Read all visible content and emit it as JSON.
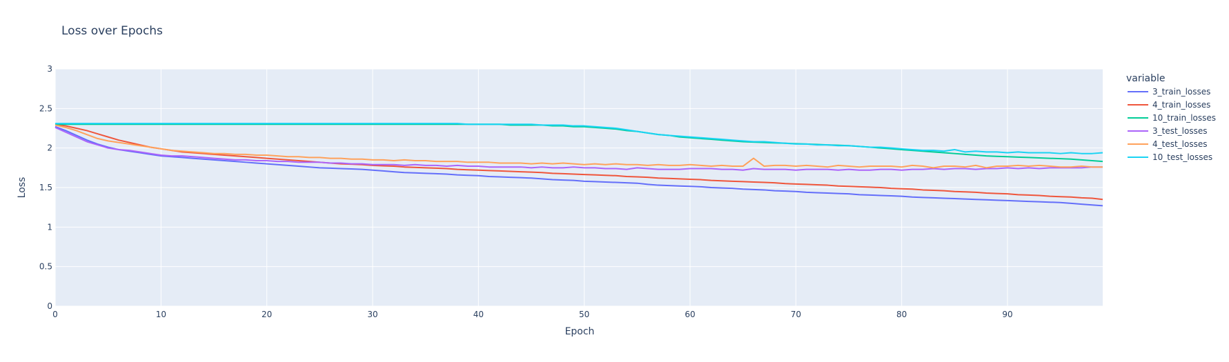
{
  "chart_data": {
    "type": "line",
    "title": "Loss over Epochs",
    "xlabel": "Epoch",
    "ylabel": "Loss",
    "xlim": [
      0,
      99
    ],
    "ylim": [
      0,
      3
    ],
    "x_ticks": [
      0,
      10,
      20,
      30,
      40,
      50,
      60,
      70,
      80,
      90
    ],
    "y_ticks": [
      0,
      0.5,
      1,
      1.5,
      2,
      2.5,
      3
    ],
    "grid": true,
    "legend_title": "variable",
    "legend_position": "right",
    "series": [
      {
        "name": "3_train_losses",
        "color": "#636efa",
        "values": [
          2.27,
          2.22,
          2.16,
          2.1,
          2.05,
          2.01,
          1.98,
          1.96,
          1.94,
          1.92,
          1.9,
          1.89,
          1.88,
          1.87,
          1.86,
          1.85,
          1.84,
          1.83,
          1.82,
          1.81,
          1.8,
          1.79,
          1.78,
          1.77,
          1.76,
          1.75,
          1.745,
          1.74,
          1.735,
          1.73,
          1.72,
          1.71,
          1.7,
          1.69,
          1.685,
          1.68,
          1.675,
          1.67,
          1.66,
          1.655,
          1.65,
          1.64,
          1.635,
          1.63,
          1.625,
          1.62,
          1.61,
          1.6,
          1.595,
          1.59,
          1.58,
          1.575,
          1.57,
          1.565,
          1.56,
          1.555,
          1.54,
          1.53,
          1.525,
          1.52,
          1.515,
          1.51,
          1.5,
          1.495,
          1.49,
          1.48,
          1.475,
          1.47,
          1.46,
          1.455,
          1.45,
          1.44,
          1.435,
          1.43,
          1.425,
          1.42,
          1.41,
          1.405,
          1.4,
          1.395,
          1.39,
          1.38,
          1.375,
          1.37,
          1.365,
          1.36,
          1.355,
          1.35,
          1.345,
          1.34,
          1.335,
          1.33,
          1.325,
          1.32,
          1.315,
          1.31,
          1.3,
          1.29,
          1.28,
          1.27
        ]
      },
      {
        "name": "4_train_losses",
        "color": "#ef553b",
        "values": [
          2.3,
          2.28,
          2.25,
          2.22,
          2.18,
          2.14,
          2.1,
          2.07,
          2.04,
          2.01,
          1.99,
          1.97,
          1.95,
          1.94,
          1.93,
          1.92,
          1.91,
          1.9,
          1.89,
          1.88,
          1.87,
          1.86,
          1.85,
          1.84,
          1.83,
          1.82,
          1.81,
          1.8,
          1.795,
          1.79,
          1.78,
          1.775,
          1.77,
          1.76,
          1.755,
          1.75,
          1.745,
          1.74,
          1.73,
          1.725,
          1.72,
          1.715,
          1.71,
          1.705,
          1.7,
          1.695,
          1.69,
          1.68,
          1.675,
          1.67,
          1.665,
          1.66,
          1.655,
          1.65,
          1.64,
          1.635,
          1.63,
          1.62,
          1.615,
          1.61,
          1.605,
          1.6,
          1.59,
          1.585,
          1.58,
          1.575,
          1.57,
          1.565,
          1.56,
          1.55,
          1.545,
          1.54,
          1.535,
          1.53,
          1.52,
          1.515,
          1.51,
          1.505,
          1.5,
          1.49,
          1.485,
          1.48,
          1.47,
          1.465,
          1.46,
          1.45,
          1.445,
          1.44,
          1.43,
          1.425,
          1.42,
          1.41,
          1.405,
          1.4,
          1.39,
          1.385,
          1.38,
          1.37,
          1.365,
          1.35
        ]
      },
      {
        "name": "10_train_losses",
        "color": "#00cc96",
        "values": [
          2.3,
          2.3,
          2.3,
          2.3,
          2.3,
          2.3,
          2.3,
          2.3,
          2.3,
          2.3,
          2.3,
          2.3,
          2.3,
          2.3,
          2.3,
          2.3,
          2.3,
          2.3,
          2.3,
          2.3,
          2.3,
          2.3,
          2.3,
          2.3,
          2.3,
          2.3,
          2.3,
          2.3,
          2.3,
          2.3,
          2.3,
          2.3,
          2.3,
          2.3,
          2.3,
          2.3,
          2.3,
          2.3,
          2.3,
          2.3,
          2.3,
          2.3,
          2.3,
          2.29,
          2.29,
          2.29,
          2.29,
          2.28,
          2.28,
          2.27,
          2.27,
          2.26,
          2.25,
          2.24,
          2.22,
          2.21,
          2.19,
          2.17,
          2.16,
          2.14,
          2.13,
          2.12,
          2.11,
          2.1,
          2.09,
          2.08,
          2.075,
          2.07,
          2.065,
          2.06,
          2.055,
          2.05,
          2.045,
          2.04,
          2.035,
          2.03,
          2.02,
          2.01,
          2.0,
          1.99,
          1.98,
          1.97,
          1.96,
          1.95,
          1.94,
          1.93,
          1.92,
          1.91,
          1.9,
          1.895,
          1.89,
          1.885,
          1.88,
          1.875,
          1.87,
          1.865,
          1.86,
          1.85,
          1.84,
          1.83
        ]
      },
      {
        "name": "3_test_losses",
        "color": "#ab63fa",
        "values": [
          2.26,
          2.2,
          2.14,
          2.08,
          2.04,
          2.0,
          1.98,
          1.97,
          1.95,
          1.93,
          1.91,
          1.9,
          1.9,
          1.89,
          1.88,
          1.87,
          1.86,
          1.85,
          1.85,
          1.84,
          1.84,
          1.83,
          1.83,
          1.82,
          1.82,
          1.82,
          1.81,
          1.81,
          1.8,
          1.8,
          1.79,
          1.79,
          1.79,
          1.78,
          1.79,
          1.78,
          1.78,
          1.77,
          1.78,
          1.77,
          1.77,
          1.76,
          1.76,
          1.76,
          1.76,
          1.75,
          1.76,
          1.75,
          1.75,
          1.76,
          1.75,
          1.75,
          1.74,
          1.74,
          1.73,
          1.75,
          1.74,
          1.73,
          1.73,
          1.73,
          1.74,
          1.74,
          1.74,
          1.73,
          1.73,
          1.72,
          1.74,
          1.73,
          1.73,
          1.73,
          1.72,
          1.73,
          1.73,
          1.73,
          1.72,
          1.73,
          1.72,
          1.72,
          1.73,
          1.73,
          1.72,
          1.73,
          1.73,
          1.74,
          1.73,
          1.74,
          1.74,
          1.73,
          1.74,
          1.74,
          1.75,
          1.74,
          1.75,
          1.74,
          1.75,
          1.75,
          1.75,
          1.75,
          1.76,
          1.76
        ]
      },
      {
        "name": "4_test_losses",
        "color": "#ffa15a",
        "values": [
          2.29,
          2.26,
          2.22,
          2.17,
          2.12,
          2.09,
          2.07,
          2.05,
          2.03,
          2.01,
          1.99,
          1.97,
          1.96,
          1.95,
          1.94,
          1.93,
          1.93,
          1.92,
          1.92,
          1.91,
          1.91,
          1.9,
          1.89,
          1.89,
          1.88,
          1.88,
          1.87,
          1.87,
          1.86,
          1.86,
          1.85,
          1.85,
          1.84,
          1.85,
          1.84,
          1.84,
          1.83,
          1.83,
          1.83,
          1.82,
          1.82,
          1.82,
          1.81,
          1.81,
          1.81,
          1.8,
          1.81,
          1.8,
          1.81,
          1.8,
          1.79,
          1.8,
          1.79,
          1.8,
          1.79,
          1.79,
          1.78,
          1.79,
          1.78,
          1.78,
          1.79,
          1.78,
          1.77,
          1.78,
          1.77,
          1.77,
          1.87,
          1.77,
          1.78,
          1.78,
          1.77,
          1.78,
          1.77,
          1.76,
          1.78,
          1.77,
          1.76,
          1.77,
          1.77,
          1.77,
          1.76,
          1.78,
          1.77,
          1.75,
          1.77,
          1.77,
          1.76,
          1.78,
          1.75,
          1.77,
          1.77,
          1.78,
          1.77,
          1.78,
          1.77,
          1.76,
          1.76,
          1.77,
          1.76,
          1.76
        ]
      },
      {
        "name": "10_test_losses",
        "color": "#19d3f3",
        "values": [
          2.31,
          2.31,
          2.31,
          2.31,
          2.31,
          2.31,
          2.31,
          2.31,
          2.31,
          2.31,
          2.31,
          2.31,
          2.31,
          2.31,
          2.31,
          2.31,
          2.31,
          2.31,
          2.31,
          2.31,
          2.31,
          2.31,
          2.31,
          2.31,
          2.31,
          2.31,
          2.31,
          2.31,
          2.31,
          2.31,
          2.31,
          2.31,
          2.31,
          2.31,
          2.31,
          2.31,
          2.31,
          2.31,
          2.31,
          2.3,
          2.3,
          2.3,
          2.3,
          2.3,
          2.3,
          2.3,
          2.29,
          2.29,
          2.29,
          2.28,
          2.28,
          2.27,
          2.26,
          2.25,
          2.23,
          2.21,
          2.19,
          2.17,
          2.16,
          2.15,
          2.14,
          2.13,
          2.12,
          2.11,
          2.1,
          2.09,
          2.08,
          2.08,
          2.07,
          2.06,
          2.05,
          2.05,
          2.04,
          2.04,
          2.03,
          2.03,
          2.02,
          2.01,
          2.01,
          2.0,
          1.99,
          1.98,
          1.97,
          1.97,
          1.96,
          1.98,
          1.95,
          1.96,
          1.95,
          1.95,
          1.94,
          1.95,
          1.94,
          1.94,
          1.94,
          1.93,
          1.94,
          1.93,
          1.93,
          1.94
        ]
      }
    ]
  }
}
